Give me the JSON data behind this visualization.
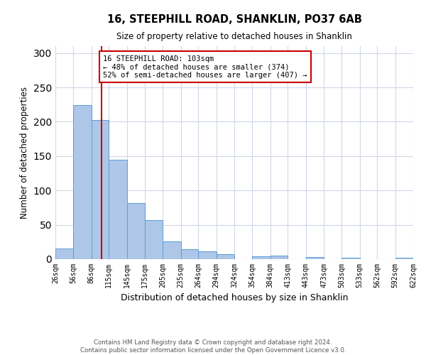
{
  "title": "16, STEEPHILL ROAD, SHANKLIN, PO37 6AB",
  "subtitle": "Size of property relative to detached houses in Shanklin",
  "xlabel": "Distribution of detached houses by size in Shanklin",
  "ylabel": "Number of detached properties",
  "bar_color": "#aec6e8",
  "bar_edge_color": "#5a9fd4",
  "background_color": "#ffffff",
  "grid_color": "#d0d8e8",
  "bin_edges": [
    26,
    56,
    86,
    115,
    145,
    175,
    205,
    235,
    264,
    294,
    324,
    354,
    384,
    413,
    443,
    473,
    503,
    533,
    562,
    592,
    622
  ],
  "bin_labels": [
    "26sqm",
    "56sqm",
    "86sqm",
    "115sqm",
    "145sqm",
    "175sqm",
    "205sqm",
    "235sqm",
    "264sqm",
    "294sqm",
    "324sqm",
    "354sqm",
    "384sqm",
    "413sqm",
    "443sqm",
    "473sqm",
    "503sqm",
    "533sqm",
    "562sqm",
    "592sqm",
    "622sqm"
  ],
  "bar_heights": [
    16,
    224,
    203,
    145,
    82,
    57,
    26,
    14,
    11,
    7,
    0,
    4,
    5,
    0,
    3,
    0,
    2,
    0,
    0,
    2
  ],
  "ylim": [
    0,
    310
  ],
  "yticks": [
    0,
    50,
    100,
    150,
    200,
    250,
    300
  ],
  "vline_x": 103,
  "vline_color": "#cc0000",
  "annotation_box_title": "16 STEEPHILL ROAD: 103sqm",
  "annotation_line1": "← 48% of detached houses are smaller (374)",
  "annotation_line2": "52% of semi-detached houses are larger (407) →",
  "annotation_box_color": "#cc0000",
  "footer_line1": "Contains HM Land Registry data © Crown copyright and database right 2024.",
  "footer_line2": "Contains public sector information licensed under the Open Government Licence v3.0."
}
